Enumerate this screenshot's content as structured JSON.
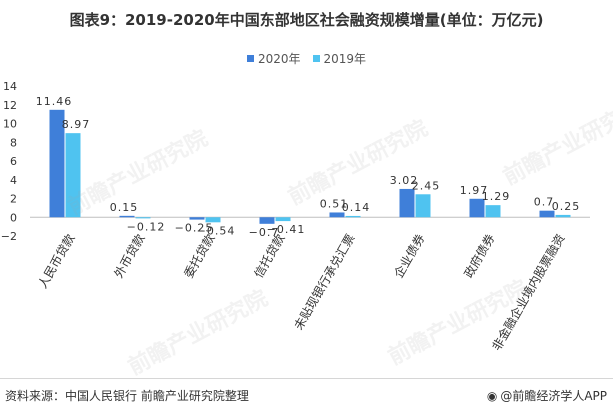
{
  "title": "图表9：2019-2020年中国东部地区社会融资规模增量(单位：万亿元)",
  "source": "资料来源：中国人民银行 前瞻产业研究院整理",
  "brand": {
    "icon": "owl-logo-icon",
    "text": "@前瞻经济学人APP"
  },
  "watermark": "前瞻产业研究院",
  "colors": {
    "s2020": "#3f7fd9",
    "s2019": "#4fc3f0",
    "axis": "#bfbfbf",
    "text": "#333333"
  },
  "chart_data": {
    "type": "bar",
    "title": "图表9：2019-2020年中国东部地区社会融资规模增量(单位：万亿元)",
    "categories": [
      "人民币贷款",
      "外币贷款",
      "委托贷款",
      "信托贷款",
      "未贴现银行承兑汇票",
      "企业债券",
      "政府债券",
      "非金融企业境内股票融资"
    ],
    "series": [
      {
        "name": "2020年",
        "values": [
          11.46,
          0.15,
          -0.25,
          -0.7,
          0.51,
          3.02,
          1.97,
          0.7
        ]
      },
      {
        "name": "2019年",
        "values": [
          8.97,
          -0.12,
          -0.54,
          -0.41,
          0.14,
          2.45,
          1.29,
          0.25
        ]
      }
    ],
    "value_labels": [
      [
        "11.46",
        "0.15",
        "−0.25",
        "−0.7",
        "0.51",
        "3.02",
        "1.97",
        "0.7"
      ],
      [
        "8.97",
        "−0.12",
        "−0.54",
        "−0.41",
        "0.14",
        "2.45",
        "1.29",
        "0.25"
      ]
    ],
    "yticks": [
      "−2",
      "0",
      "2",
      "4",
      "6",
      "8",
      "10",
      "12",
      "14"
    ],
    "ylim": [
      -2,
      14
    ],
    "xlabel": "",
    "ylabel": "",
    "legend_position": "top-center",
    "grid": false
  }
}
